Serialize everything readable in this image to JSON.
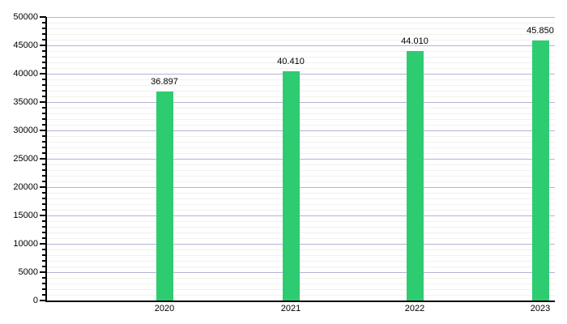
{
  "chart_data": {
    "type": "bar",
    "title": "",
    "xlabel": "",
    "ylabel": "",
    "categories": [
      "2020",
      "2021",
      "2022",
      "2023"
    ],
    "values": [
      36897,
      40410,
      44010,
      45850
    ],
    "value_labels": [
      "36.897",
      "40.410",
      "44.010",
      "45.850"
    ],
    "ylim": [
      0,
      50000
    ],
    "y_major_tick_interval": 5000,
    "y_minor_tick_interval": 1000,
    "y_tick_labels": [
      "0",
      "5000",
      "10000",
      "15000",
      "20000",
      "25000",
      "30000",
      "35000",
      "40000",
      "45000",
      "50000"
    ],
    "grid": "horizontal-major-and-minor",
    "legend": false,
    "colors": {
      "bar": "#2ecc71",
      "major_grid": "#b6b2d6",
      "minor_grid": "#f0f0ef",
      "axis": "#000000",
      "text": "#000000",
      "background": "#ffffff"
    }
  }
}
